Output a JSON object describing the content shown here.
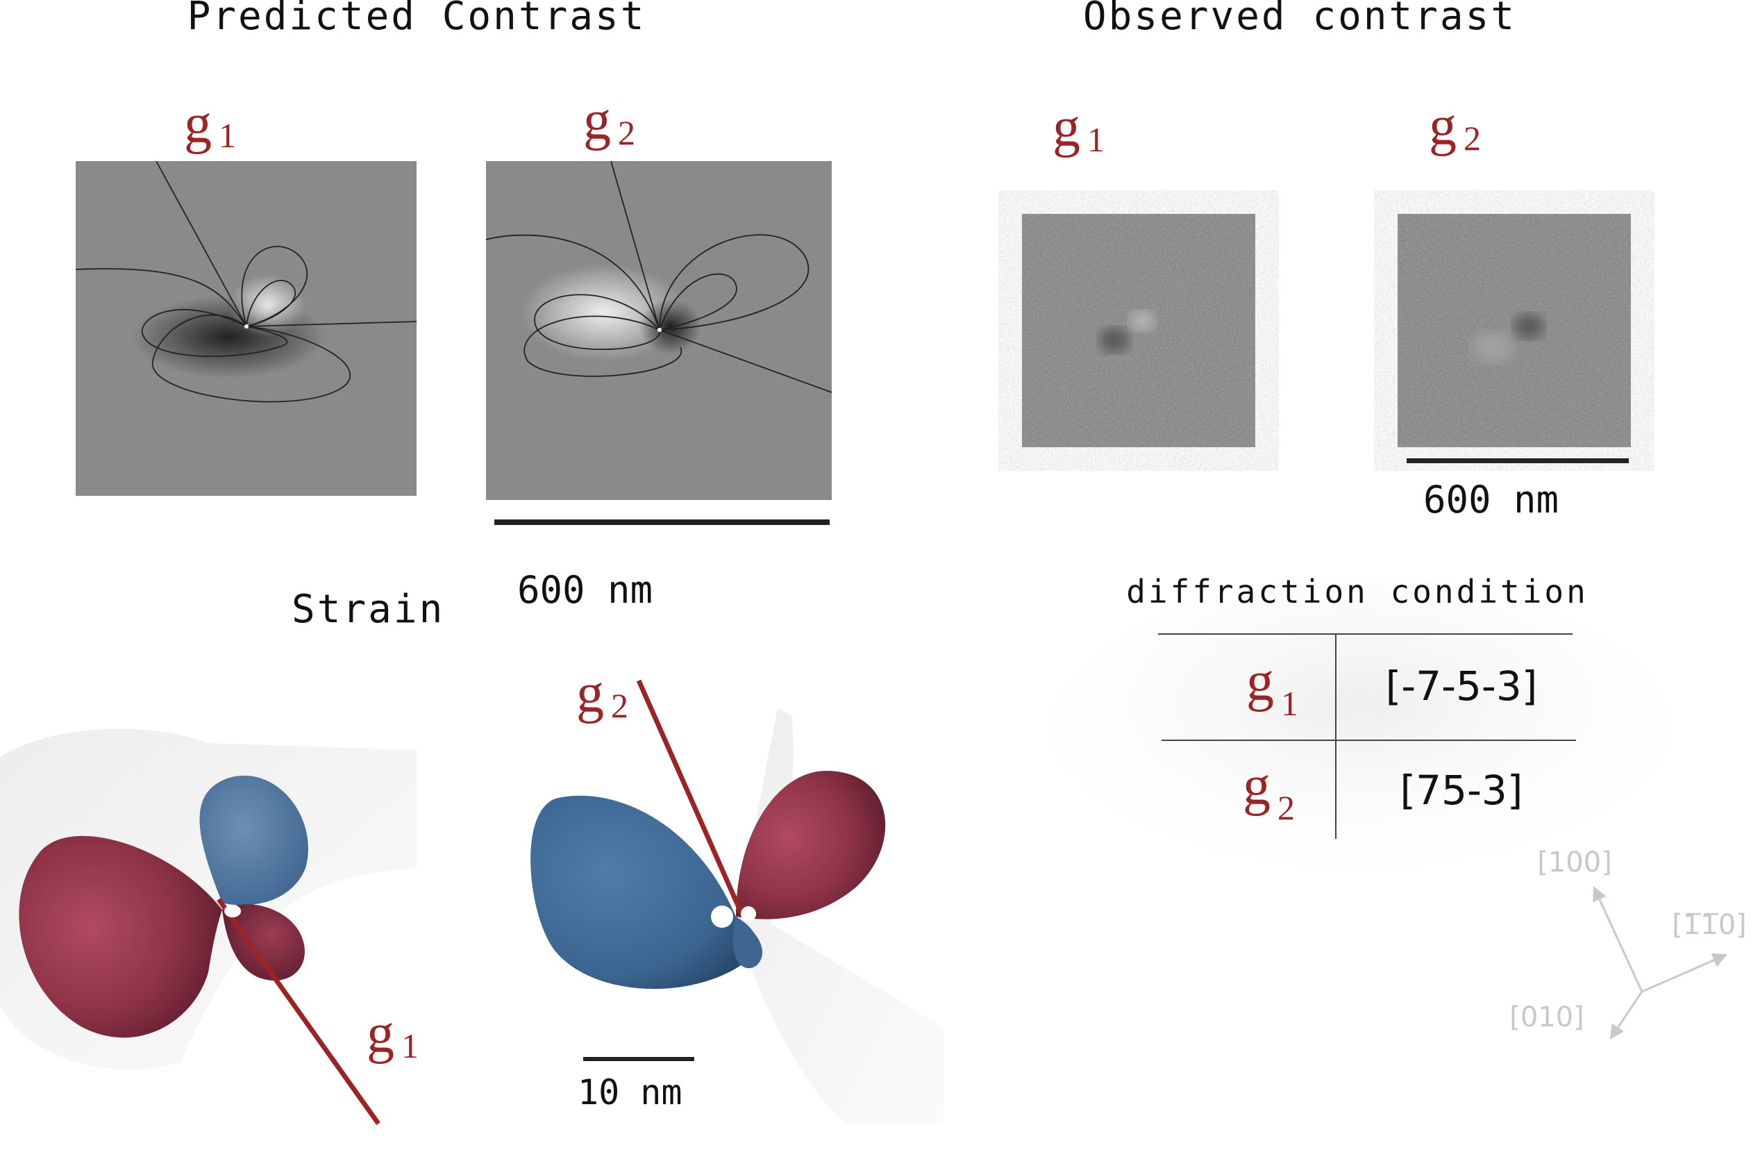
{
  "predicted": {
    "title": "Predicted Contrast",
    "g1_label": "g",
    "g1_sub": "1",
    "g2_label": "g",
    "g2_sub": "2",
    "scale_label": "600 nm"
  },
  "observed": {
    "title": "Observed contrast",
    "g1_label": "g",
    "g1_sub": "1",
    "g2_label": "g",
    "g2_sub": "2",
    "scale_label": "600 nm"
  },
  "strain": {
    "title": "Strain",
    "g1_label": "g",
    "g1_sub": "1",
    "g2_label": "g",
    "g2_sub": "2",
    "scale_label": "10 nm"
  },
  "diffraction": {
    "title": "diffraction condition",
    "rows": [
      {
        "g": "g",
        "sub": "1",
        "value": "[-7-5-3]"
      },
      {
        "g": "g",
        "sub": "2",
        "value": "[75-3]"
      }
    ]
  },
  "axes": {
    "a100": "[100]",
    "a110": "[1̅1̅0]",
    "a010": "[010]"
  },
  "colors": {
    "accent_red": "#9b2426",
    "lobe_red": "#8e3347",
    "lobe_blue": "#3f6a95"
  }
}
